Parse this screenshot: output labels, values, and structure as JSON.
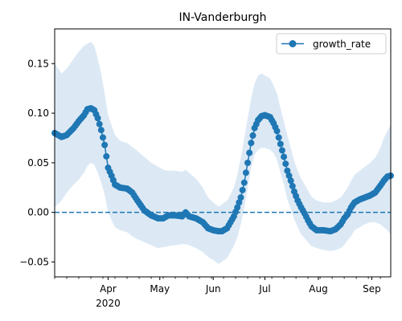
{
  "chart_data": {
    "type": "line",
    "title": "IN-Vanderburgh",
    "xlabel": "",
    "ylabel": "",
    "x_range": [
      "2020-03-01",
      "2020-09-12"
    ],
    "ylim": [
      -0.065,
      0.185
    ],
    "y_ticks": [
      -0.05,
      0.0,
      0.05,
      0.1,
      0.15
    ],
    "y_tick_labels": [
      "−0.05",
      "0.00",
      "0.05",
      "0.10",
      "0.15"
    ],
    "x_ticks": [
      {
        "date": "2020-04-01",
        "label": "Apr",
        "sublabel": "2020"
      },
      {
        "date": "2020-05-01",
        "label": "May",
        "sublabel": ""
      },
      {
        "date": "2020-06-01",
        "label": "Jun",
        "sublabel": ""
      },
      {
        "date": "2020-07-01",
        "label": "Jul",
        "sublabel": ""
      },
      {
        "date": "2020-08-01",
        "label": "Aug",
        "sublabel": ""
      },
      {
        "date": "2020-09-01",
        "label": "Sep",
        "sublabel": ""
      }
    ],
    "grid": false,
    "legend": {
      "position": "top-right",
      "entries": [
        "growth_rate"
      ]
    },
    "reference_line": {
      "y": 0.0,
      "style": "dashed"
    },
    "colors": {
      "line": "#1f77b4",
      "band": "#dce9f5"
    },
    "series": [
      {
        "name": "growth_rate",
        "x": [
          "2020-03-01",
          "2020-03-05",
          "2020-03-08",
          "2020-03-12",
          "2020-03-15",
          "2020-03-18",
          "2020-03-20",
          "2020-03-22",
          "2020-03-24",
          "2020-03-26",
          "2020-03-28",
          "2020-03-30",
          "2020-04-01",
          "2020-04-03",
          "2020-04-05",
          "2020-04-08",
          "2020-04-12",
          "2020-04-15",
          "2020-04-18",
          "2020-04-22",
          "2020-04-26",
          "2020-04-30",
          "2020-05-03",
          "2020-05-06",
          "2020-05-10",
          "2020-05-14",
          "2020-05-16",
          "2020-05-18",
          "2020-05-22",
          "2020-05-26",
          "2020-05-29",
          "2020-06-01",
          "2020-06-04",
          "2020-06-06",
          "2020-06-09",
          "2020-06-11",
          "2020-06-13",
          "2020-06-15",
          "2020-06-17",
          "2020-06-19",
          "2020-06-21",
          "2020-06-23",
          "2020-06-25",
          "2020-06-27",
          "2020-06-29",
          "2020-07-01",
          "2020-07-04",
          "2020-07-06",
          "2020-07-08",
          "2020-07-10",
          "2020-07-12",
          "2020-07-14",
          "2020-07-16",
          "2020-07-18",
          "2020-07-20",
          "2020-07-22",
          "2020-07-24",
          "2020-07-26",
          "2020-07-28",
          "2020-07-31",
          "2020-08-04",
          "2020-08-08",
          "2020-08-11",
          "2020-08-14",
          "2020-08-16",
          "2020-08-18",
          "2020-08-20",
          "2020-08-22",
          "2020-08-25",
          "2020-08-28",
          "2020-08-31",
          "2020-09-03",
          "2020-09-06",
          "2020-09-08",
          "2020-09-10",
          "2020-09-12"
        ],
        "y": [
          0.08,
          0.076,
          0.078,
          0.085,
          0.092,
          0.098,
          0.104,
          0.105,
          0.103,
          0.095,
          0.083,
          0.068,
          0.045,
          0.037,
          0.028,
          0.025,
          0.024,
          0.02,
          0.012,
          0.002,
          -0.003,
          -0.006,
          -0.006,
          -0.003,
          -0.003,
          -0.004,
          0.0,
          -0.004,
          -0.006,
          -0.01,
          -0.016,
          -0.018,
          -0.019,
          -0.019,
          -0.016,
          -0.01,
          -0.004,
          0.005,
          0.015,
          0.03,
          0.05,
          0.07,
          0.085,
          0.093,
          0.097,
          0.098,
          0.096,
          0.09,
          0.082,
          0.069,
          0.056,
          0.042,
          0.032,
          0.021,
          0.012,
          0.005,
          -0.001,
          -0.008,
          -0.014,
          -0.018,
          -0.018,
          -0.019,
          -0.017,
          -0.012,
          -0.006,
          -0.002,
          0.005,
          0.01,
          0.013,
          0.015,
          0.017,
          0.02,
          0.027,
          0.032,
          0.036,
          0.037
        ],
        "band_low": [
          0.005,
          0.012,
          0.02,
          0.028,
          0.033,
          0.04,
          0.047,
          0.05,
          0.048,
          0.04,
          0.03,
          0.018,
          0.0,
          -0.008,
          -0.015,
          -0.018,
          -0.02,
          -0.024,
          -0.027,
          -0.03,
          -0.033,
          -0.036,
          -0.035,
          -0.034,
          -0.033,
          -0.032,
          -0.032,
          -0.033,
          -0.036,
          -0.04,
          -0.045,
          -0.048,
          -0.052,
          -0.05,
          -0.046,
          -0.04,
          -0.034,
          -0.025,
          -0.012,
          0.005,
          0.025,
          0.045,
          0.058,
          0.063,
          0.065,
          0.065,
          0.063,
          0.06,
          0.053,
          0.04,
          0.028,
          0.013,
          0.003,
          -0.007,
          -0.015,
          -0.022,
          -0.026,
          -0.03,
          -0.034,
          -0.036,
          -0.038,
          -0.039,
          -0.038,
          -0.036,
          -0.033,
          -0.028,
          -0.024,
          -0.018,
          -0.015,
          -0.012,
          -0.01,
          -0.01,
          -0.012,
          -0.015,
          -0.018,
          -0.022
        ],
        "band_high": [
          0.15,
          0.14,
          0.145,
          0.155,
          0.162,
          0.168,
          0.17,
          0.172,
          0.168,
          0.155,
          0.14,
          0.12,
          0.098,
          0.088,
          0.078,
          0.072,
          0.07,
          0.066,
          0.062,
          0.056,
          0.05,
          0.046,
          0.043,
          0.042,
          0.042,
          0.041,
          0.043,
          0.04,
          0.034,
          0.025,
          0.015,
          0.01,
          0.006,
          0.008,
          0.012,
          0.018,
          0.025,
          0.038,
          0.055,
          0.075,
          0.095,
          0.115,
          0.13,
          0.138,
          0.14,
          0.138,
          0.135,
          0.128,
          0.12,
          0.105,
          0.092,
          0.078,
          0.065,
          0.052,
          0.042,
          0.034,
          0.028,
          0.022,
          0.016,
          0.012,
          0.01,
          0.01,
          0.012,
          0.015,
          0.02,
          0.025,
          0.032,
          0.038,
          0.042,
          0.046,
          0.05,
          0.055,
          0.065,
          0.075,
          0.082,
          0.088
        ]
      }
    ]
  }
}
